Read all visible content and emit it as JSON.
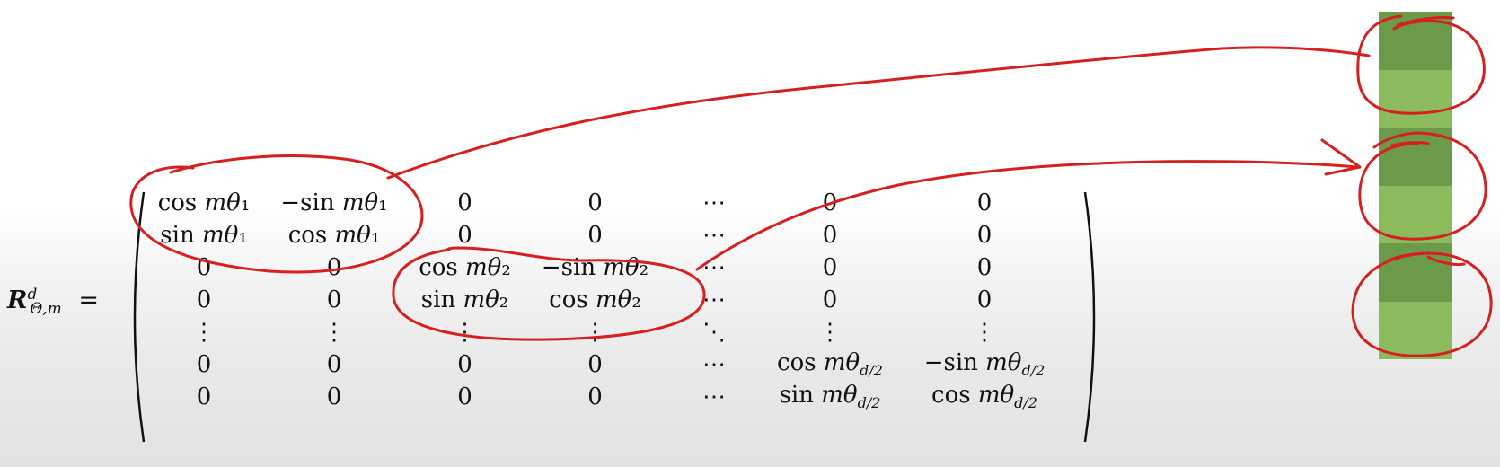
{
  "equation": {
    "lhs": {
      "symbol": "R",
      "superscript": "d",
      "subscript": "Θ,m",
      "equals": "="
    },
    "matrix_rows": [
      [
        "cos mθ₁",
        "−sin mθ₁",
        "0",
        "0",
        "⋯",
        "0",
        "0"
      ],
      [
        "sin mθ₁",
        "cos mθ₁",
        "0",
        "0",
        "⋯",
        "0",
        "0"
      ],
      [
        "0",
        "0",
        "cos mθ₂",
        "−sin mθ₂",
        "⋯",
        "0",
        "0"
      ],
      [
        "0",
        "0",
        "sin mθ₂",
        "cos mθ₂",
        "⋯",
        "0",
        "0"
      ],
      [
        "⋮",
        "⋮",
        "⋮",
        "⋮",
        "⋱",
        "⋮",
        "⋮"
      ],
      [
        "0",
        "0",
        "0",
        "0",
        "⋯",
        "cos mθd/2",
        "−sin mθd/2"
      ],
      [
        "0",
        "0",
        "0",
        "0",
        "⋯",
        "sin mθd/2",
        "cos mθd/2"
      ]
    ]
  },
  "annotation": {
    "stroke_color": "#d62020",
    "shapes": [
      "circle-block-1",
      "circle-block-2",
      "arrow-to-pair-1",
      "arrow-to-pair-2",
      "circle-pair-1",
      "circle-pair-2",
      "circle-pair-3"
    ]
  },
  "vector": {
    "dark_color": "#6a9a4a",
    "light_color": "#8cbb5e",
    "segments": [
      "dark",
      "light",
      "dark",
      "light",
      "dark",
      "light"
    ]
  }
}
